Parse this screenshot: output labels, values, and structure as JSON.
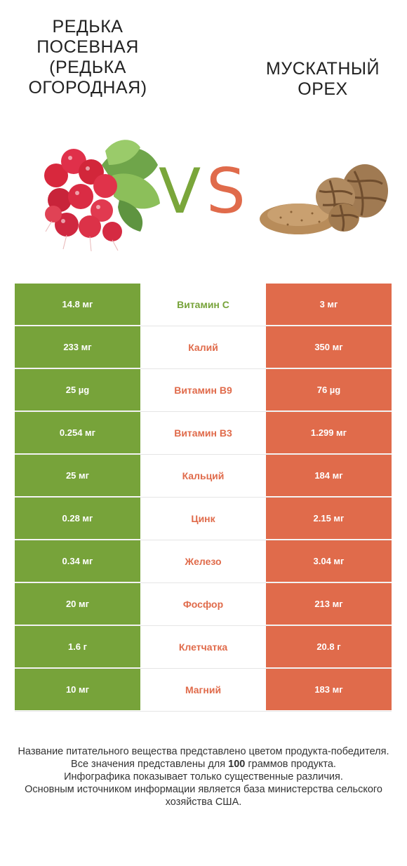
{
  "header": {
    "left_title": "Редька посевная (Редька огородная)",
    "right_title": "Мускатный орех",
    "vs_v": "V",
    "vs_s": "S"
  },
  "colors": {
    "left_winner": "#77a33a",
    "right_winner": "#e06b4b"
  },
  "rows": [
    {
      "left": "14.8 мг",
      "name": "Витамин C",
      "right": "3 мг",
      "winner": "left"
    },
    {
      "left": "233 мг",
      "name": "Калий",
      "right": "350 мг",
      "winner": "right"
    },
    {
      "left": "25 µg",
      "name": "Витамин B9",
      "right": "76 µg",
      "winner": "right"
    },
    {
      "left": "0.254 мг",
      "name": "Витамин B3",
      "right": "1.299 мг",
      "winner": "right"
    },
    {
      "left": "25 мг",
      "name": "Кальций",
      "right": "184 мг",
      "winner": "right"
    },
    {
      "left": "0.28 мг",
      "name": "Цинк",
      "right": "2.15 мг",
      "winner": "right"
    },
    {
      "left": "0.34 мг",
      "name": "Железо",
      "right": "3.04 мг",
      "winner": "right"
    },
    {
      "left": "20 мг",
      "name": "Фосфор",
      "right": "213 мг",
      "winner": "right"
    },
    {
      "left": "1.6 г",
      "name": "Клетчатка",
      "right": "20.8 г",
      "winner": "right"
    },
    {
      "left": "10 мг",
      "name": "Магний",
      "right": "183 мг",
      "winner": "right"
    }
  ],
  "footnote": {
    "line1": "Название питательного вещества представлено цветом продукта-победителя.",
    "line2_pre": "Все значения представлены для ",
    "line2_bold": "100",
    "line2_post": " граммов продукта.",
    "line3": "Инфографика показывает только существенные различия.",
    "line4": "Основным источником информации является база министерства сельского хозяйства США."
  }
}
